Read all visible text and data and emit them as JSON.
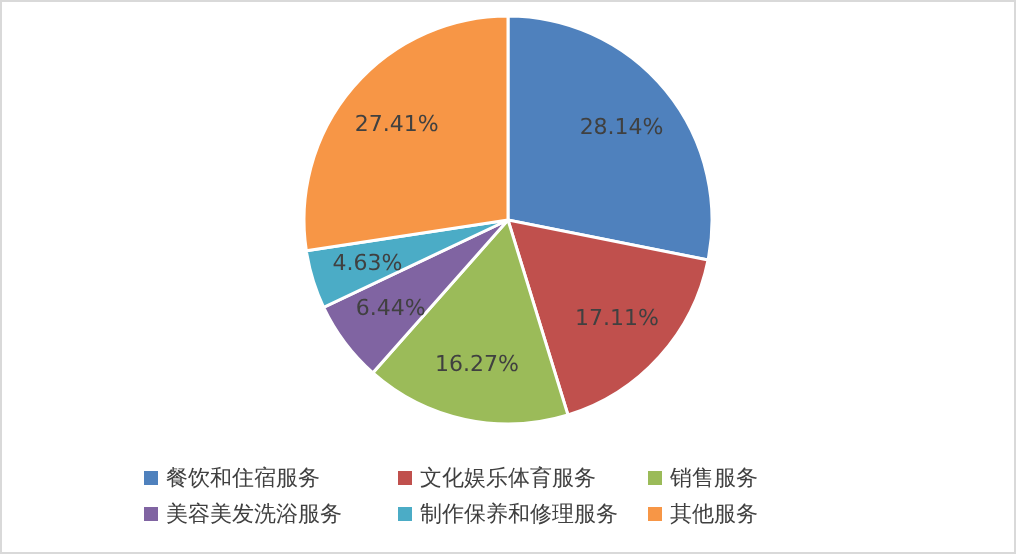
{
  "chart_data": {
    "type": "pie",
    "categories": [
      "餐饮和住宿服务",
      "文化娱乐体育服务",
      "销售服务",
      "美容美发洗浴服务",
      "制作保养和修理服务",
      "其他服务"
    ],
    "values": [
      28.14,
      17.11,
      16.27,
      6.44,
      4.63,
      27.41
    ],
    "colors": [
      "#4f81bd",
      "#c0504d",
      "#9bbb59",
      "#8064a2",
      "#4bacc6",
      "#f79646"
    ],
    "value_labels": [
      "28.14%",
      "17.11%",
      "16.27%",
      "6.44%",
      "4.63%",
      "27.41%"
    ],
    "legend": "bottom"
  }
}
